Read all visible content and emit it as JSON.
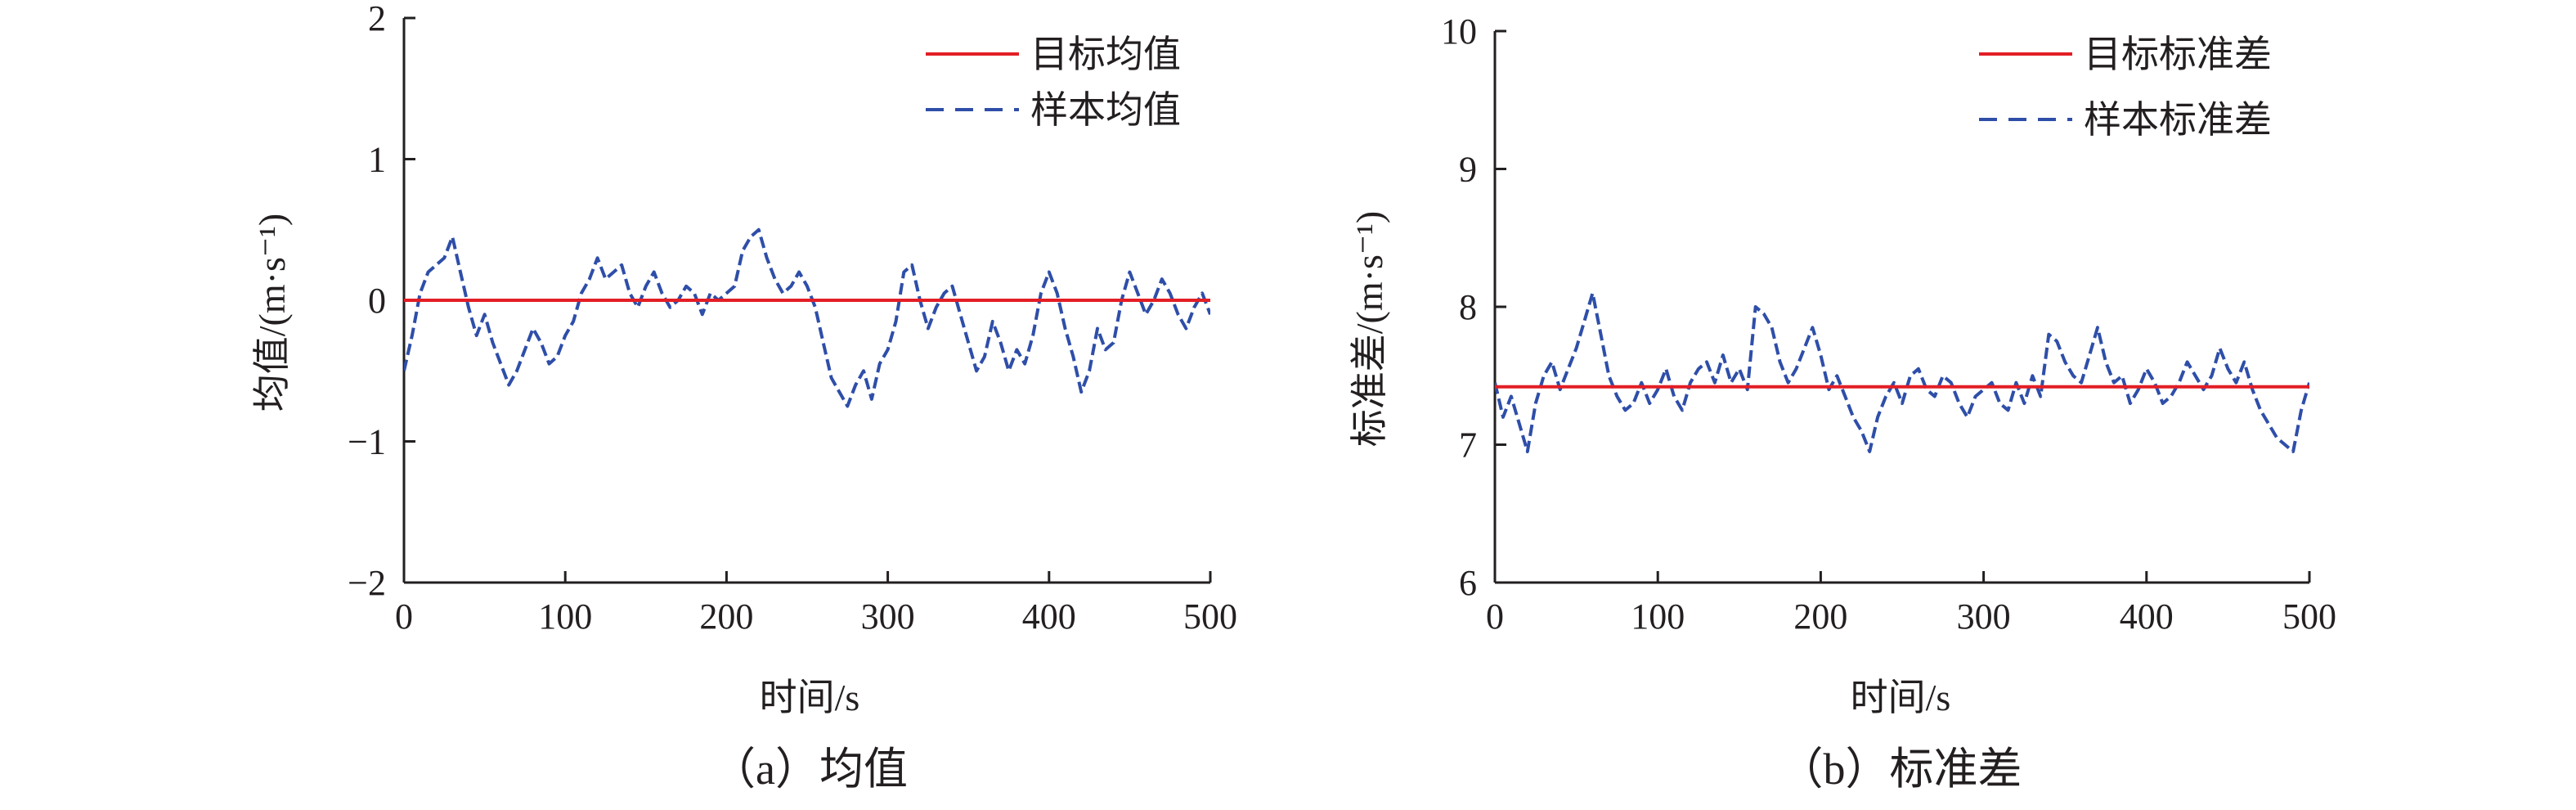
{
  "chart_data": [
    {
      "type": "line",
      "caption": "（a）均值",
      "xlabel": "时间/s",
      "ylabel": "均值/(m·s⁻¹)",
      "xlim": [
        0,
        500
      ],
      "ylim": [
        -2,
        2
      ],
      "xticks": [
        0,
        100,
        200,
        300,
        400,
        500
      ],
      "yticks": [
        -2,
        -1,
        0,
        1,
        2
      ],
      "ytick_labels": [
        "−2",
        "−1",
        "0",
        "1",
        "2"
      ],
      "legend_position": "top-right",
      "series": [
        {
          "name": "目标均值",
          "style": "solid",
          "color": "#e31e25",
          "x": [
            0,
            500
          ],
          "values": [
            0,
            0
          ]
        },
        {
          "name": "样本均值",
          "style": "dashed",
          "color": "#2e4ea8",
          "x": [
            0,
            5,
            10,
            15,
            20,
            25,
            30,
            35,
            40,
            45,
            50,
            55,
            60,
            65,
            70,
            75,
            80,
            85,
            90,
            95,
            100,
            105,
            110,
            115,
            120,
            125,
            130,
            135,
            140,
            145,
            150,
            155,
            160,
            165,
            170,
            175,
            180,
            185,
            190,
            195,
            200,
            205,
            210,
            215,
            220,
            225,
            230,
            235,
            240,
            245,
            250,
            255,
            260,
            265,
            270,
            275,
            280,
            285,
            290,
            295,
            300,
            305,
            310,
            315,
            320,
            325,
            330,
            335,
            340,
            345,
            350,
            355,
            360,
            365,
            370,
            375,
            380,
            385,
            390,
            395,
            400,
            405,
            410,
            415,
            420,
            425,
            430,
            435,
            440,
            445,
            450,
            455,
            460,
            465,
            470,
            475,
            480,
            485,
            490,
            495,
            500
          ],
          "values": [
            -0.5,
            -0.25,
            0.05,
            0.2,
            0.25,
            0.3,
            0.45,
            0.2,
            -0.05,
            -0.25,
            -0.1,
            -0.3,
            -0.45,
            -0.6,
            -0.5,
            -0.35,
            -0.2,
            -0.3,
            -0.45,
            -0.4,
            -0.25,
            -0.15,
            0.05,
            0.15,
            0.3,
            0.15,
            0.2,
            0.25,
            0.05,
            -0.05,
            0.1,
            0.2,
            0.05,
            -0.05,
            0.0,
            0.1,
            0.05,
            -0.1,
            0.05,
            0.0,
            0.05,
            0.1,
            0.35,
            0.45,
            0.5,
            0.3,
            0.15,
            0.05,
            0.1,
            0.2,
            0.1,
            -0.05,
            -0.3,
            -0.55,
            -0.65,
            -0.75,
            -0.6,
            -0.5,
            -0.7,
            -0.45,
            -0.35,
            -0.15,
            0.2,
            0.25,
            0.0,
            -0.2,
            -0.05,
            0.05,
            0.1,
            -0.1,
            -0.3,
            -0.5,
            -0.4,
            -0.15,
            -0.3,
            -0.5,
            -0.35,
            -0.45,
            -0.25,
            0.05,
            0.2,
            0.05,
            -0.2,
            -0.4,
            -0.65,
            -0.5,
            -0.2,
            -0.35,
            -0.3,
            0.0,
            0.2,
            0.05,
            -0.1,
            0.0,
            0.15,
            0.05,
            -0.1,
            -0.2,
            -0.05,
            0.05,
            -0.1
          ]
        }
      ]
    },
    {
      "type": "line",
      "caption": "（b）标准差",
      "xlabel": "时间/s",
      "ylabel": "标准差/(m·s⁻¹)",
      "xlim": [
        0,
        500
      ],
      "ylim": [
        6,
        10
      ],
      "xticks": [
        0,
        100,
        200,
        300,
        400,
        500
      ],
      "yticks": [
        6,
        7,
        8,
        9,
        10
      ],
      "ytick_labels": [
        "6",
        "7",
        "8",
        "9",
        "10"
      ],
      "legend_position": "top-right",
      "series": [
        {
          "name": "目标标准差",
          "style": "solid",
          "color": "#e31e25",
          "x": [
            0,
            500
          ],
          "values": [
            7.42,
            7.42
          ]
        },
        {
          "name": "样本标准差",
          "style": "dashed",
          "color": "#2e4ea8",
          "x": [
            0,
            5,
            10,
            15,
            20,
            25,
            30,
            35,
            40,
            45,
            50,
            55,
            60,
            65,
            70,
            75,
            80,
            85,
            90,
            95,
            100,
            105,
            110,
            115,
            120,
            125,
            130,
            135,
            140,
            145,
            150,
            155,
            160,
            165,
            170,
            175,
            180,
            185,
            190,
            195,
            200,
            205,
            210,
            215,
            220,
            225,
            230,
            235,
            240,
            245,
            250,
            255,
            260,
            265,
            270,
            275,
            280,
            285,
            290,
            295,
            300,
            305,
            310,
            315,
            320,
            325,
            330,
            335,
            340,
            345,
            350,
            355,
            360,
            365,
            370,
            375,
            380,
            385,
            390,
            395,
            400,
            405,
            410,
            415,
            420,
            425,
            430,
            435,
            440,
            445,
            450,
            455,
            460,
            465,
            470,
            475,
            480,
            485,
            490,
            495,
            500
          ],
          "values": [
            7.45,
            7.2,
            7.35,
            7.15,
            6.95,
            7.3,
            7.5,
            7.6,
            7.4,
            7.55,
            7.7,
            7.9,
            8.1,
            7.8,
            7.5,
            7.35,
            7.25,
            7.3,
            7.45,
            7.3,
            7.4,
            7.55,
            7.35,
            7.25,
            7.45,
            7.55,
            7.6,
            7.45,
            7.65,
            7.45,
            7.55,
            7.4,
            8.0,
            7.95,
            7.85,
            7.6,
            7.45,
            7.55,
            7.7,
            7.85,
            7.65,
            7.4,
            7.5,
            7.35,
            7.2,
            7.1,
            6.95,
            7.2,
            7.35,
            7.45,
            7.3,
            7.5,
            7.55,
            7.4,
            7.35,
            7.5,
            7.45,
            7.3,
            7.2,
            7.35,
            7.4,
            7.45,
            7.3,
            7.25,
            7.45,
            7.3,
            7.5,
            7.35,
            7.8,
            7.75,
            7.6,
            7.5,
            7.45,
            7.65,
            7.85,
            7.6,
            7.45,
            7.5,
            7.3,
            7.4,
            7.55,
            7.45,
            7.3,
            7.35,
            7.45,
            7.6,
            7.5,
            7.4,
            7.5,
            7.7,
            7.55,
            7.45,
            7.6,
            7.4,
            7.25,
            7.15,
            7.05,
            7.0,
            6.95,
            7.25,
            7.45
          ]
        }
      ]
    }
  ]
}
